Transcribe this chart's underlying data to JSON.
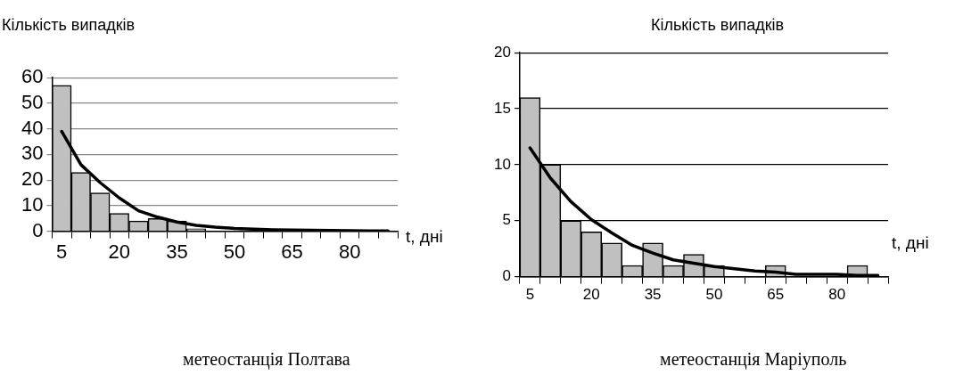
{
  "chart_data": [
    {
      "type": "bar",
      "ylabel": "Кількість випадків",
      "xlabel": "t, дні",
      "annotations": [
        "метеостанція Полтава"
      ],
      "categories": [
        "5",
        null,
        null,
        "20",
        null,
        null,
        "35",
        null,
        null,
        "50",
        null,
        null,
        "65",
        null,
        null,
        "80",
        null,
        null
      ],
      "series": [
        {
          "color": "#c0c0c0",
          "values": [
            57,
            23,
            15,
            7,
            4,
            5,
            4,
            1,
            0,
            0,
            0,
            0,
            0,
            0,
            null,
            0,
            0,
            0
          ]
        },
        {
          "type": "line",
          "color": "#000000",
          "values": [
            39,
            26,
            19,
            13,
            8,
            5.5,
            3.6,
            2.3,
            1.6,
            1.1,
            0.8,
            0.6,
            0.5,
            0.4,
            0.3,
            0.2,
            0.1,
            0.1
          ]
        }
      ],
      "ylim": [
        0,
        60
      ],
      "yticks": [
        0,
        10,
        20,
        30,
        40,
        50,
        60
      ],
      "grid": "y",
      "marker": "none"
    },
    {
      "type": "bar",
      "ylabel": "Кількість випадків",
      "xlabel": "t, дні",
      "annotations": [
        "метеостанція Маріуполь"
      ],
      "categories": [
        "5",
        null,
        null,
        "20",
        null,
        null,
        "35",
        null,
        null,
        "50",
        null,
        null,
        "65",
        null,
        null,
        "80",
        null,
        null
      ],
      "series": [
        {
          "color": "#c0c0c0",
          "values": [
            16,
            10,
            5,
            4,
            3,
            1,
            3,
            1,
            2,
            1,
            0,
            0,
            1,
            0,
            0,
            0,
            1,
            0
          ]
        },
        {
          "type": "line",
          "color": "#000000",
          "values": [
            11.5,
            8.8,
            6.7,
            5.1,
            3.9,
            2.8,
            2.1,
            1.5,
            1.2,
            0.9,
            0.7,
            0.5,
            0.4,
            0.2,
            0.2,
            0.2,
            0.1,
            0.1
          ]
        }
      ],
      "ylim": [
        0,
        20
      ],
      "yticks": [
        0,
        5,
        10,
        15,
        20
      ],
      "grid": "y",
      "marker": "none"
    }
  ]
}
